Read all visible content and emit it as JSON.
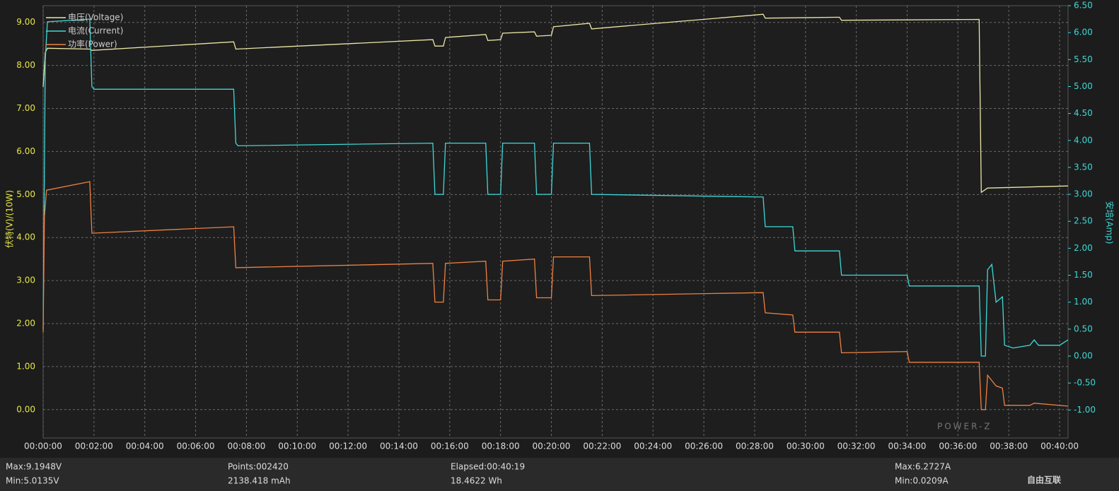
{
  "chart_data": {
    "type": "line",
    "ylabel": "伏特(V)/(10W)",
    "y2label": "安培(Amp)",
    "xlim": [
      0,
      2420
    ],
    "ylim": [
      -0.66,
      9.39
    ],
    "y2lim": [
      -1.52,
      6.5
    ],
    "grid": true,
    "legend": "top-left",
    "xticks": [
      {
        "value": 0,
        "label": "00:00:00"
      },
      {
        "value": 120,
        "label": "00:02:00"
      },
      {
        "value": 240,
        "label": "00:04:00"
      },
      {
        "value": 360,
        "label": "00:06:00"
      },
      {
        "value": 480,
        "label": "00:08:00"
      },
      {
        "value": 600,
        "label": "00:10:00"
      },
      {
        "value": 720,
        "label": "00:12:00"
      },
      {
        "value": 840,
        "label": "00:14:00"
      },
      {
        "value": 960,
        "label": "00:16:00"
      },
      {
        "value": 1080,
        "label": "00:18:00"
      },
      {
        "value": 1200,
        "label": "00:20:00"
      },
      {
        "value": 1320,
        "label": "00:22:00"
      },
      {
        "value": 1440,
        "label": "00:24:00"
      },
      {
        "value": 1560,
        "label": "00:26:00"
      },
      {
        "value": 1680,
        "label": "00:28:00"
      },
      {
        "value": 1800,
        "label": "00:30:00"
      },
      {
        "value": 1920,
        "label": "00:32:00"
      },
      {
        "value": 2040,
        "label": "00:34:00"
      },
      {
        "value": 2160,
        "label": "00:36:00"
      },
      {
        "value": 2280,
        "label": "00:38:00"
      },
      {
        "value": 2400,
        "label": "00:40:00"
      }
    ],
    "yticks": [
      {
        "value": 0,
        "label": "0.00"
      },
      {
        "value": 1,
        "label": "1.00"
      },
      {
        "value": 2,
        "label": "2.00"
      },
      {
        "value": 3,
        "label": "3.00"
      },
      {
        "value": 4,
        "label": "4.00"
      },
      {
        "value": 5,
        "label": "5.00"
      },
      {
        "value": 6,
        "label": "6.00"
      },
      {
        "value": 7,
        "label": "7.00"
      },
      {
        "value": 8,
        "label": "8.00"
      },
      {
        "value": 9,
        "label": "9.00"
      }
    ],
    "y2ticks": [
      {
        "value": -1,
        "label": "-1.00"
      },
      {
        "value": -0.5,
        "label": "-0.50"
      },
      {
        "value": 0,
        "label": "0.00"
      },
      {
        "value": 0.5,
        "label": "0.50"
      },
      {
        "value": 1,
        "label": "1.00"
      },
      {
        "value": 1.5,
        "label": "1.50"
      },
      {
        "value": 2,
        "label": "2.00"
      },
      {
        "value": 2.5,
        "label": "2.50"
      },
      {
        "value": 3,
        "label": "3.00"
      },
      {
        "value": 3.5,
        "label": "3.50"
      },
      {
        "value": 4,
        "label": "4.00"
      },
      {
        "value": 4.5,
        "label": "4.50"
      },
      {
        "value": 5,
        "label": "5.00"
      },
      {
        "value": 5.5,
        "label": "5.50"
      },
      {
        "value": 6,
        "label": "6.00"
      },
      {
        "value": 6.5,
        "label": "6.50"
      }
    ],
    "series": [
      {
        "name": "电压(Voltage)",
        "color": "#ebe6a8",
        "x": [
          0,
          5,
          10,
          110,
          115,
          450,
          455,
          920,
          925,
          945,
          950,
          1045,
          1050,
          1080,
          1085,
          1160,
          1165,
          1200,
          1205,
          1290,
          1295,
          1700,
          1705,
          1880,
          1885,
          2210,
          2215,
          2230,
          2420
        ],
        "values": [
          7.5,
          8.3,
          8.4,
          8.38,
          8.35,
          8.55,
          8.38,
          8.6,
          8.45,
          8.45,
          8.65,
          8.72,
          8.58,
          8.6,
          8.75,
          8.78,
          8.68,
          8.7,
          8.9,
          8.98,
          8.85,
          9.19,
          9.1,
          9.12,
          9.05,
          9.07,
          5.05,
          5.15,
          5.2
        ]
      },
      {
        "name": "电流(Current)",
        "color": "#3fd8d8",
        "axis": "y2",
        "x": [
          0,
          5,
          10,
          110,
          115,
          120,
          450,
          455,
          460,
          920,
          925,
          945,
          950,
          1045,
          1050,
          1080,
          1085,
          1160,
          1165,
          1200,
          1205,
          1290,
          1295,
          1700,
          1705,
          1770,
          1775,
          1880,
          1885,
          2040,
          2045,
          2210,
          2215,
          2225,
          2230,
          2240,
          2250,
          2265,
          2270,
          2290,
          2330,
          2340,
          2350,
          2400,
          2420
        ],
        "values": [
          0.5,
          5.5,
          6.2,
          6.25,
          5.0,
          4.95,
          4.95,
          3.95,
          3.9,
          3.95,
          3.0,
          3.0,
          3.95,
          3.95,
          3.0,
          3.0,
          3.95,
          3.95,
          3.0,
          3.0,
          3.95,
          3.95,
          3.0,
          2.95,
          2.4,
          2.4,
          1.95,
          1.95,
          1.5,
          1.5,
          1.3,
          1.3,
          0.0,
          0.0,
          1.6,
          1.7,
          1.0,
          1.1,
          0.2,
          0.15,
          0.2,
          0.3,
          0.2,
          0.2,
          0.3
        ]
      },
      {
        "name": "功率(Power)",
        "color": "#f08040",
        "x": [
          0,
          3,
          8,
          110,
          115,
          450,
          455,
          920,
          925,
          945,
          950,
          1045,
          1050,
          1080,
          1085,
          1160,
          1165,
          1200,
          1205,
          1290,
          1295,
          1700,
          1705,
          1770,
          1775,
          1880,
          1885,
          2040,
          2045,
          2210,
          2215,
          2225,
          2230,
          2250,
          2265,
          2270,
          2330,
          2340,
          2420
        ],
        "values": [
          1.8,
          4.5,
          5.1,
          5.3,
          4.1,
          4.25,
          3.3,
          3.4,
          2.5,
          2.5,
          3.4,
          3.45,
          2.55,
          2.55,
          3.45,
          3.5,
          2.6,
          2.6,
          3.55,
          3.55,
          2.65,
          2.72,
          2.25,
          2.2,
          1.8,
          1.8,
          1.32,
          1.35,
          1.1,
          1.1,
          0.0,
          0.0,
          0.8,
          0.55,
          0.5,
          0.1,
          0.1,
          0.15,
          0.08
        ]
      }
    ]
  },
  "footer": {
    "max_voltage": "Max:9.1948V",
    "min_voltage": "Min:5.0135V",
    "points": "Points:002420",
    "capacity": "2138.418 mAh",
    "elapsed": "Elapsed:00:40:19",
    "energy": "18.4622 Wh",
    "max_current": "Max:6.2727A",
    "min_current": "Min:0.0209A"
  },
  "logo": "POWER-Z",
  "watermark": "自由互联"
}
